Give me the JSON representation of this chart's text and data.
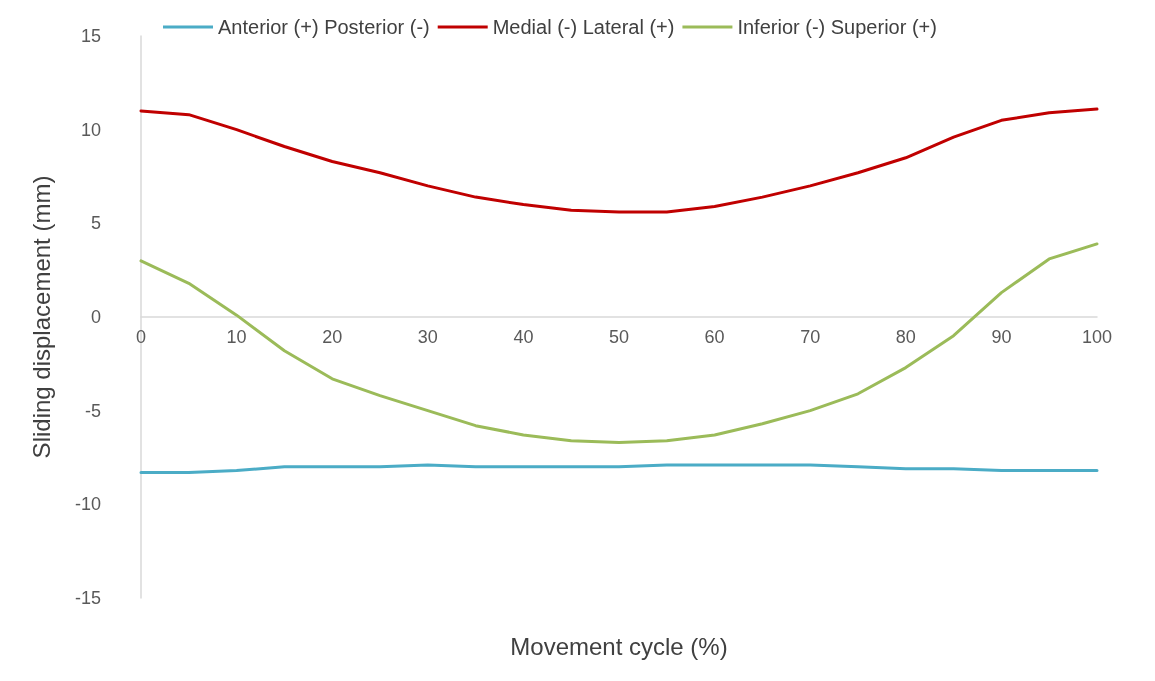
{
  "chart_data": {
    "type": "line",
    "xlabel": "Movement cycle (%)",
    "ylabel": "Sliding displacement (mm)",
    "x": [
      0,
      5,
      10,
      15,
      20,
      25,
      30,
      35,
      40,
      45,
      50,
      55,
      60,
      65,
      70,
      75,
      80,
      85,
      90,
      95,
      100
    ],
    "series": [
      {
        "name": "Anterior (+) Posterior (-)",
        "color": "#4bacc6",
        "values": [
          -8.3,
          -8.3,
          -8.2,
          -8.0,
          -8.0,
          -8.0,
          -7.9,
          -8.0,
          -8.0,
          -8.0,
          -8.0,
          -7.9,
          -7.9,
          -7.9,
          -7.9,
          -8.0,
          -8.1,
          -8.1,
          -8.2,
          -8.2,
          -8.2
        ]
      },
      {
        "name": "Medial (-) Lateral (+)",
        "color": "#c00000",
        "values": [
          11.0,
          10.8,
          10.0,
          9.1,
          8.3,
          7.7,
          7.0,
          6.4,
          6.0,
          5.7,
          5.6,
          5.6,
          5.9,
          6.4,
          7.0,
          7.7,
          8.5,
          9.6,
          10.5,
          10.9,
          11.1
        ]
      },
      {
        "name": "Inferior (-) Superior (+)",
        "color": "#9bbb59",
        "values": [
          3.0,
          1.8,
          0.1,
          -1.8,
          -3.3,
          -4.2,
          -5.0,
          -5.8,
          -6.3,
          -6.6,
          -6.7,
          -6.6,
          -6.3,
          -5.7,
          -5.0,
          -4.1,
          -2.7,
          -1.0,
          1.3,
          3.1,
          3.9
        ]
      }
    ],
    "xlim": [
      0,
      100
    ],
    "xticks": [
      0,
      10,
      20,
      30,
      40,
      50,
      60,
      70,
      80,
      90,
      100
    ],
    "ylim": [
      -15,
      15
    ],
    "yticks": [
      -15,
      -10,
      -5,
      0,
      5,
      10,
      15
    ],
    "grid": false,
    "legend": "top",
    "marker": "none",
    "line_style": "solid"
  }
}
